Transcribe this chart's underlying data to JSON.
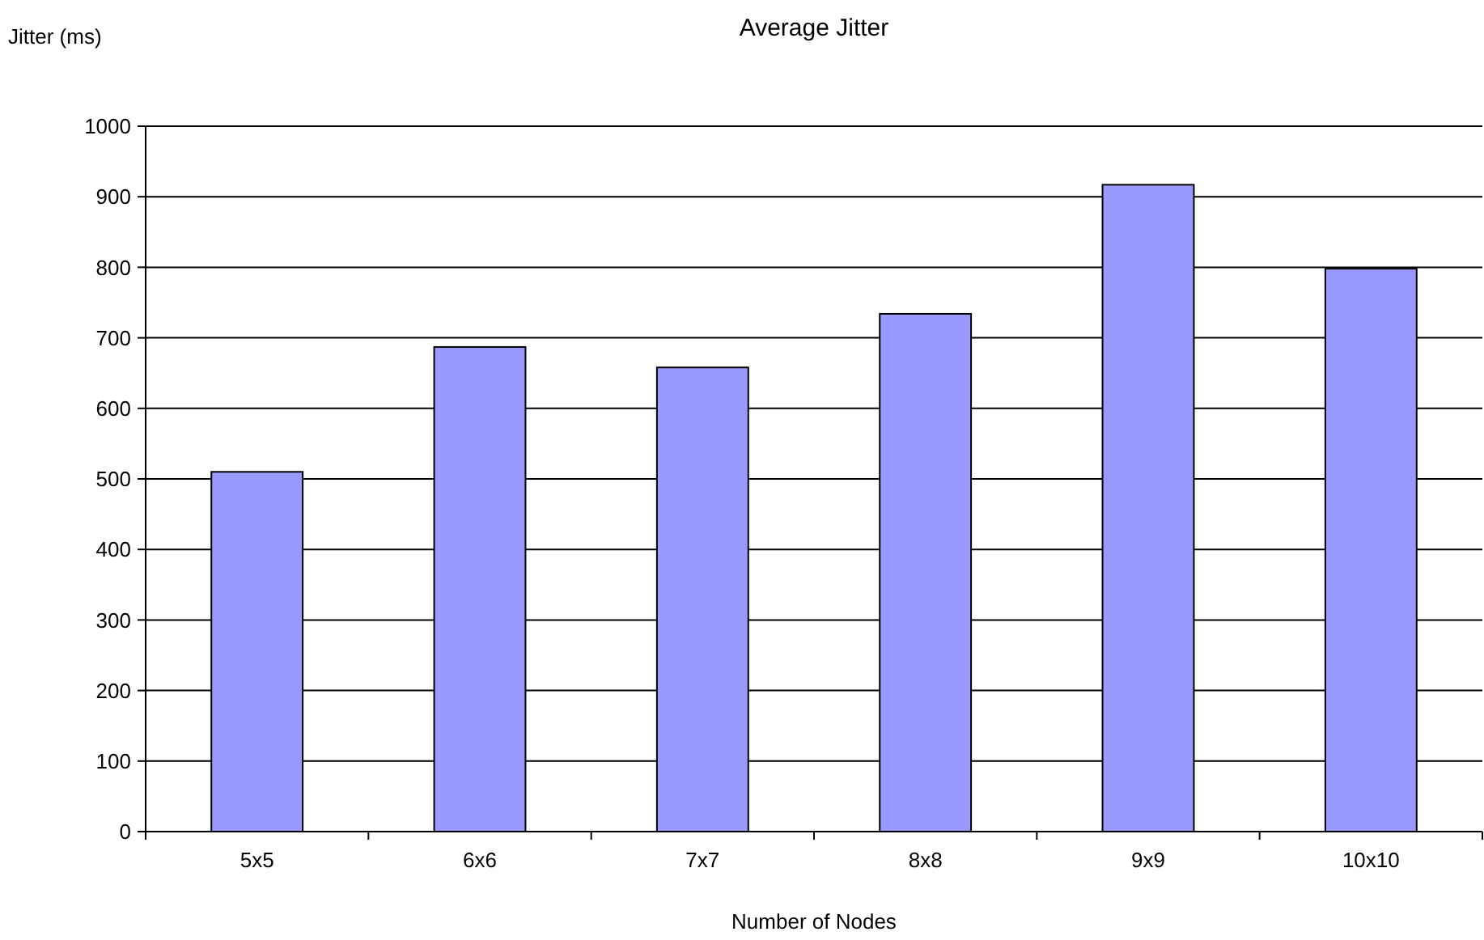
{
  "chart_data": {
    "type": "bar",
    "title": "Average Jitter",
    "xlabel": "Number of Nodes",
    "ylabel": "Jitter (ms)",
    "categories": [
      "5x5",
      "6x6",
      "7x7",
      "8x8",
      "9x9",
      "10x10"
    ],
    "values": [
      510,
      687,
      658,
      734,
      917,
      798
    ],
    "color": "#9999ff",
    "ylim": [
      0,
      1000
    ],
    "yticks": [
      0,
      100,
      200,
      300,
      400,
      500,
      600,
      700,
      800,
      900,
      1000
    ],
    "grid": "y"
  }
}
